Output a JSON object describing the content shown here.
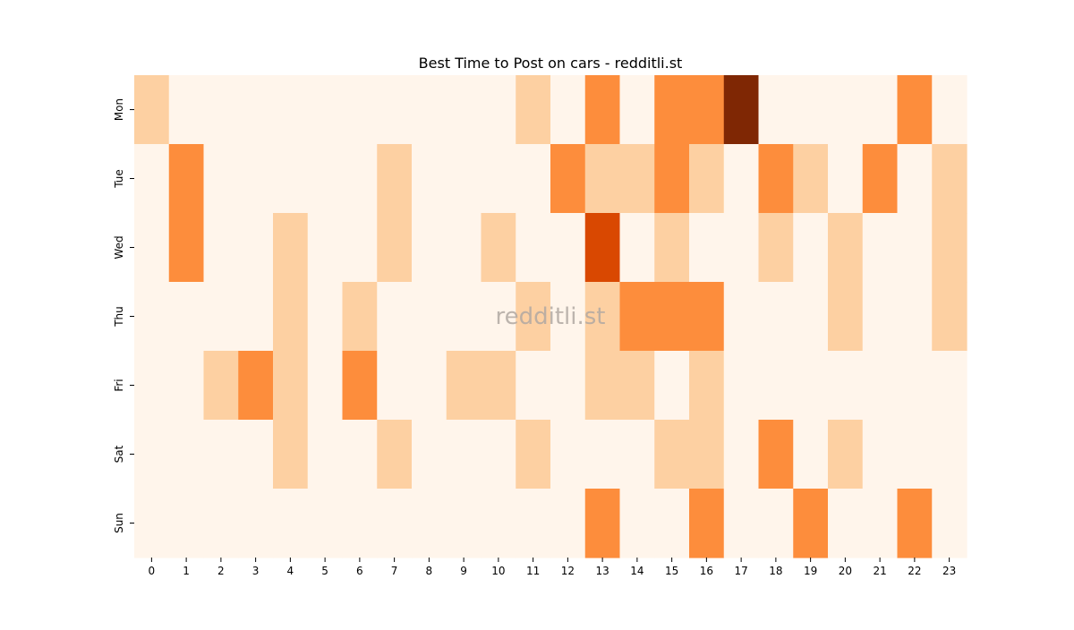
{
  "chart_data": {
    "type": "heatmap",
    "title": "Best Time to Post on cars - redditli.st",
    "xlabel": "",
    "ylabel": "",
    "x_categories": [
      "0",
      "1",
      "2",
      "3",
      "4",
      "5",
      "6",
      "7",
      "8",
      "9",
      "10",
      "11",
      "12",
      "13",
      "14",
      "15",
      "16",
      "17",
      "18",
      "19",
      "20",
      "21",
      "22",
      "23"
    ],
    "y_categories": [
      "Mon",
      "Tue",
      "Wed",
      "Thu",
      "Fri",
      "Sat",
      "Sun"
    ],
    "values": [
      [
        1,
        0,
        0,
        0,
        0,
        0,
        0,
        0,
        0,
        0,
        0,
        1,
        0,
        2,
        0,
        2,
        2,
        4,
        0,
        0,
        0,
        0,
        2,
        0
      ],
      [
        0,
        2,
        0,
        0,
        0,
        0,
        0,
        1,
        0,
        0,
        0,
        0,
        2,
        1,
        1,
        2,
        1,
        0,
        2,
        1,
        0,
        2,
        0,
        1
      ],
      [
        0,
        2,
        0,
        0,
        1,
        0,
        0,
        1,
        0,
        0,
        1,
        0,
        0,
        3,
        0,
        1,
        0,
        0,
        1,
        0,
        1,
        0,
        0,
        1
      ],
      [
        0,
        0,
        0,
        0,
        1,
        0,
        1,
        0,
        0,
        0,
        0,
        1,
        0,
        1,
        2,
        2,
        2,
        0,
        0,
        0,
        1,
        0,
        0,
        1
      ],
      [
        0,
        0,
        1,
        2,
        1,
        0,
        2,
        0,
        0,
        1,
        1,
        0,
        0,
        1,
        1,
        0,
        1,
        0,
        0,
        0,
        0,
        0,
        0,
        0
      ],
      [
        0,
        0,
        0,
        0,
        1,
        0,
        0,
        1,
        0,
        0,
        0,
        1,
        0,
        0,
        0,
        1,
        1,
        0,
        2,
        0,
        1,
        0,
        0,
        0
      ],
      [
        0,
        0,
        0,
        0,
        0,
        0,
        0,
        0,
        0,
        0,
        0,
        0,
        0,
        2,
        0,
        0,
        2,
        0,
        0,
        2,
        0,
        0,
        2,
        0
      ]
    ],
    "colormap": [
      "#fff5eb",
      "#fdd0a2",
      "#fd8d3c",
      "#d94801",
      "#7f2704"
    ],
    "grid": false,
    "legend": "none",
    "watermark": "redditli.st"
  }
}
